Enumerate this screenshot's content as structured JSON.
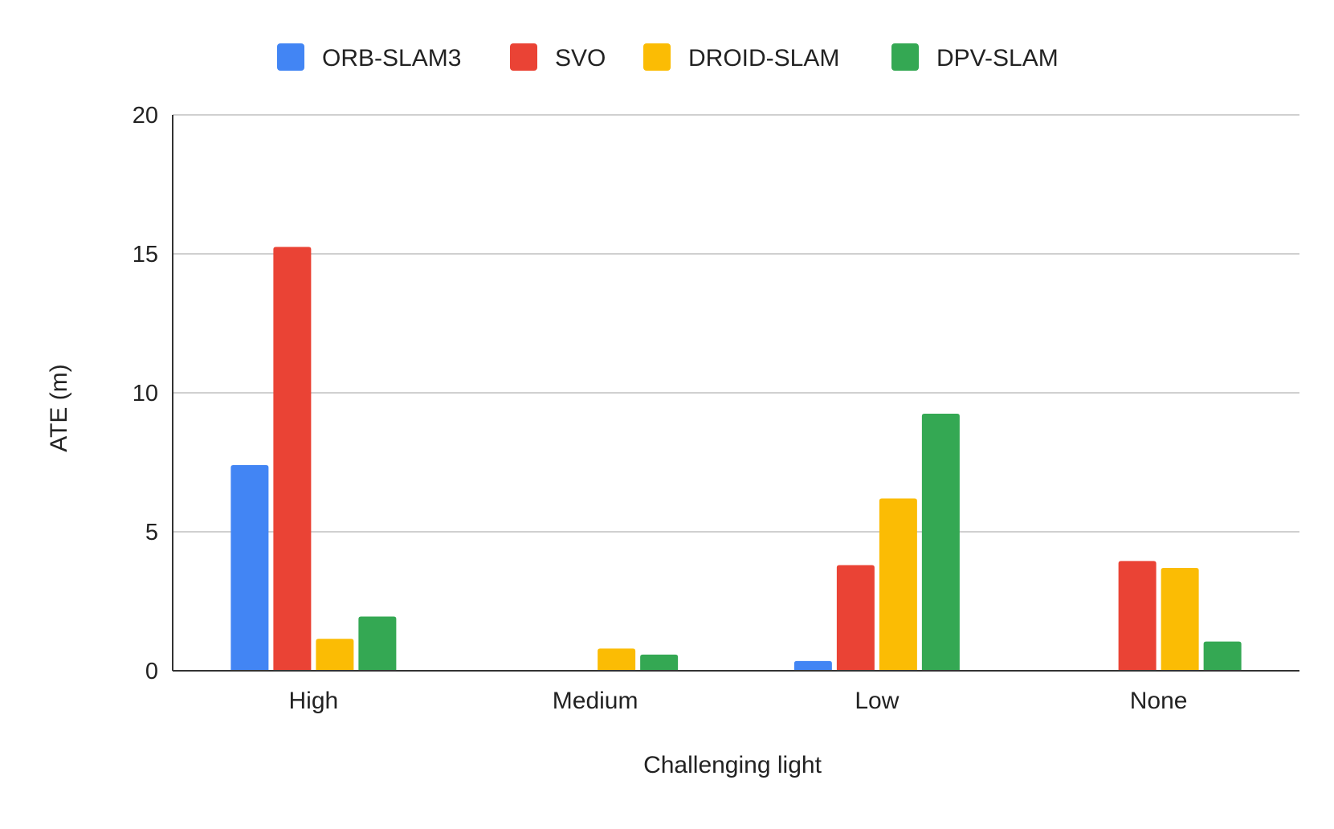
{
  "chart_data": {
    "type": "bar",
    "title": "",
    "xlabel": "Challenging light",
    "ylabel": "ATE (m)",
    "categories": [
      "High",
      "Medium",
      "Low",
      "None"
    ],
    "ylim": [
      0,
      20
    ],
    "yticks": [
      "0",
      "5",
      "10",
      "15",
      "20"
    ],
    "grid": true,
    "legend_position": "top-center",
    "series": [
      {
        "name": "ORB-SLAM3",
        "color": "#4285F4",
        "values": [
          7.4,
          null,
          0.35,
          null
        ]
      },
      {
        "name": "SVO",
        "color": "#EA4335",
        "values": [
          15.25,
          null,
          3.8,
          3.95
        ]
      },
      {
        "name": "DROID-SLAM",
        "color": "#FBBC04",
        "values": [
          1.15,
          0.8,
          6.2,
          3.7
        ]
      },
      {
        "name": "DPV-SLAM",
        "color": "#34A853",
        "values": [
          1.95,
          0.58,
          9.25,
          1.05
        ]
      }
    ]
  }
}
